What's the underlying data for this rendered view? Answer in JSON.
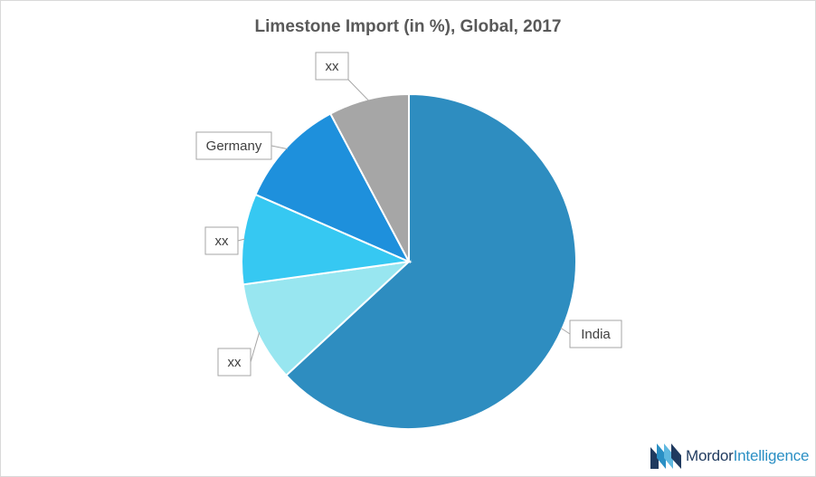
{
  "chart_data": {
    "type": "pie",
    "title": "Limestone Import (in %), Global, 2017",
    "slices": [
      {
        "label": "India",
        "value": 65,
        "color": "#2E8DC0"
      },
      {
        "label": "xx",
        "value": 10,
        "color": "#98E6F0"
      },
      {
        "label": "xx",
        "value": 9,
        "color": "#36C8F2"
      },
      {
        "label": "Germany",
        "value": 11,
        "color": "#1E90DC"
      },
      {
        "label": "xx",
        "value": 8,
        "color": "#A6A6A6"
      }
    ],
    "start_position": "12 o'clock",
    "direction": "clockwise",
    "legend": "none",
    "labels": "callouts"
  },
  "branding": {
    "name_part1": "Mordor",
    "name_part2": "Intelligence",
    "colors": {
      "dark": "#1f3a5f",
      "light": "#2a8fc4"
    }
  }
}
